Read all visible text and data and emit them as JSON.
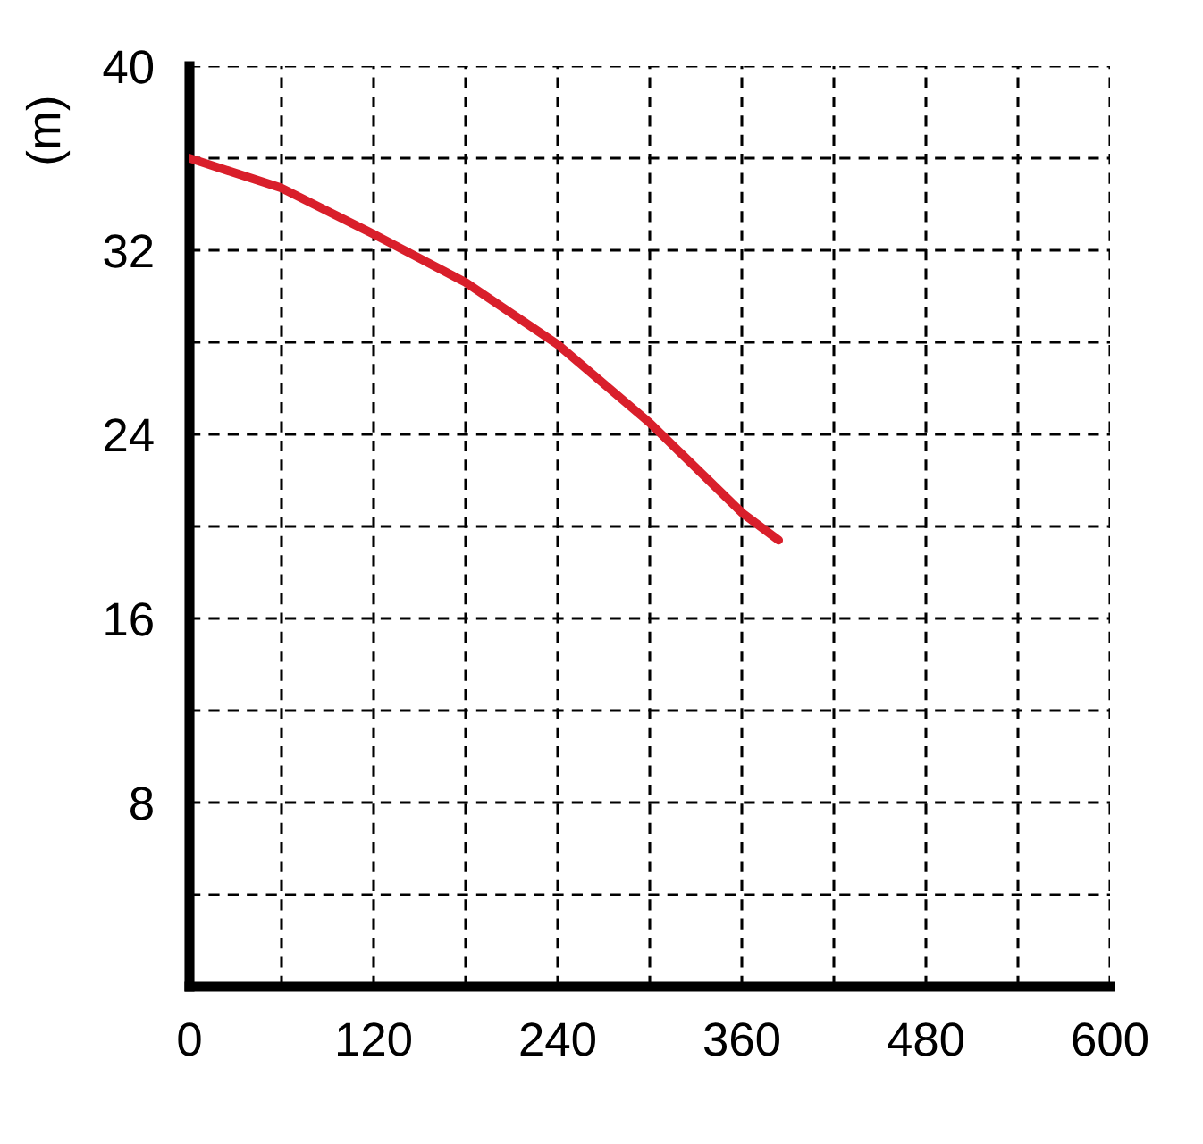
{
  "chart_data": {
    "type": "line",
    "ylabel": "(m)",
    "x": [
      0,
      60,
      120,
      180,
      240,
      300,
      360,
      384
    ],
    "series": [
      {
        "color": "#d91f2b",
        "values": [
          36,
          34.7,
          32.7,
          30.6,
          27.9,
          24.5,
          20.6,
          19.4
        ]
      }
    ],
    "xlim": [
      0,
      600
    ],
    "ylim": [
      0,
      40
    ],
    "xticks": [
      0,
      {
        "value": 60,
        "label": null
      },
      120,
      {
        "value": 180,
        "label": null
      },
      240,
      {
        "value": 300,
        "label": null
      },
      360,
      {
        "value": 420,
        "label": null
      },
      480,
      {
        "value": 540,
        "label": null
      },
      600
    ],
    "yticks": [
      {
        "value": 4,
        "label": null
      },
      8,
      {
        "value": 12,
        "label": null
      },
      16,
      {
        "value": 20,
        "label": null
      },
      24,
      {
        "value": 28,
        "label": null
      },
      32,
      {
        "value": 36,
        "label": null
      },
      40
    ],
    "grid": true,
    "line_style": "solid",
    "marker": "none",
    "legend": false
  }
}
